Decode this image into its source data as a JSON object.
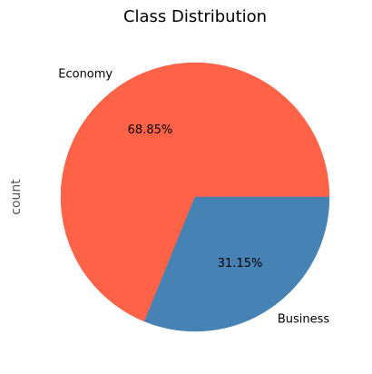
{
  "chart_data": {
    "type": "pie",
    "title": "Class Distribution",
    "ylabel": "count",
    "slices": [
      {
        "label": "Economy",
        "value": 68.85,
        "pct_label": "68.85%",
        "color": "#ff6347"
      },
      {
        "label": "Business",
        "value": 31.15,
        "pct_label": "31.15%",
        "color": "#4682b4"
      }
    ],
    "start_angle_deg": 0,
    "direction": "counterclockwise"
  }
}
